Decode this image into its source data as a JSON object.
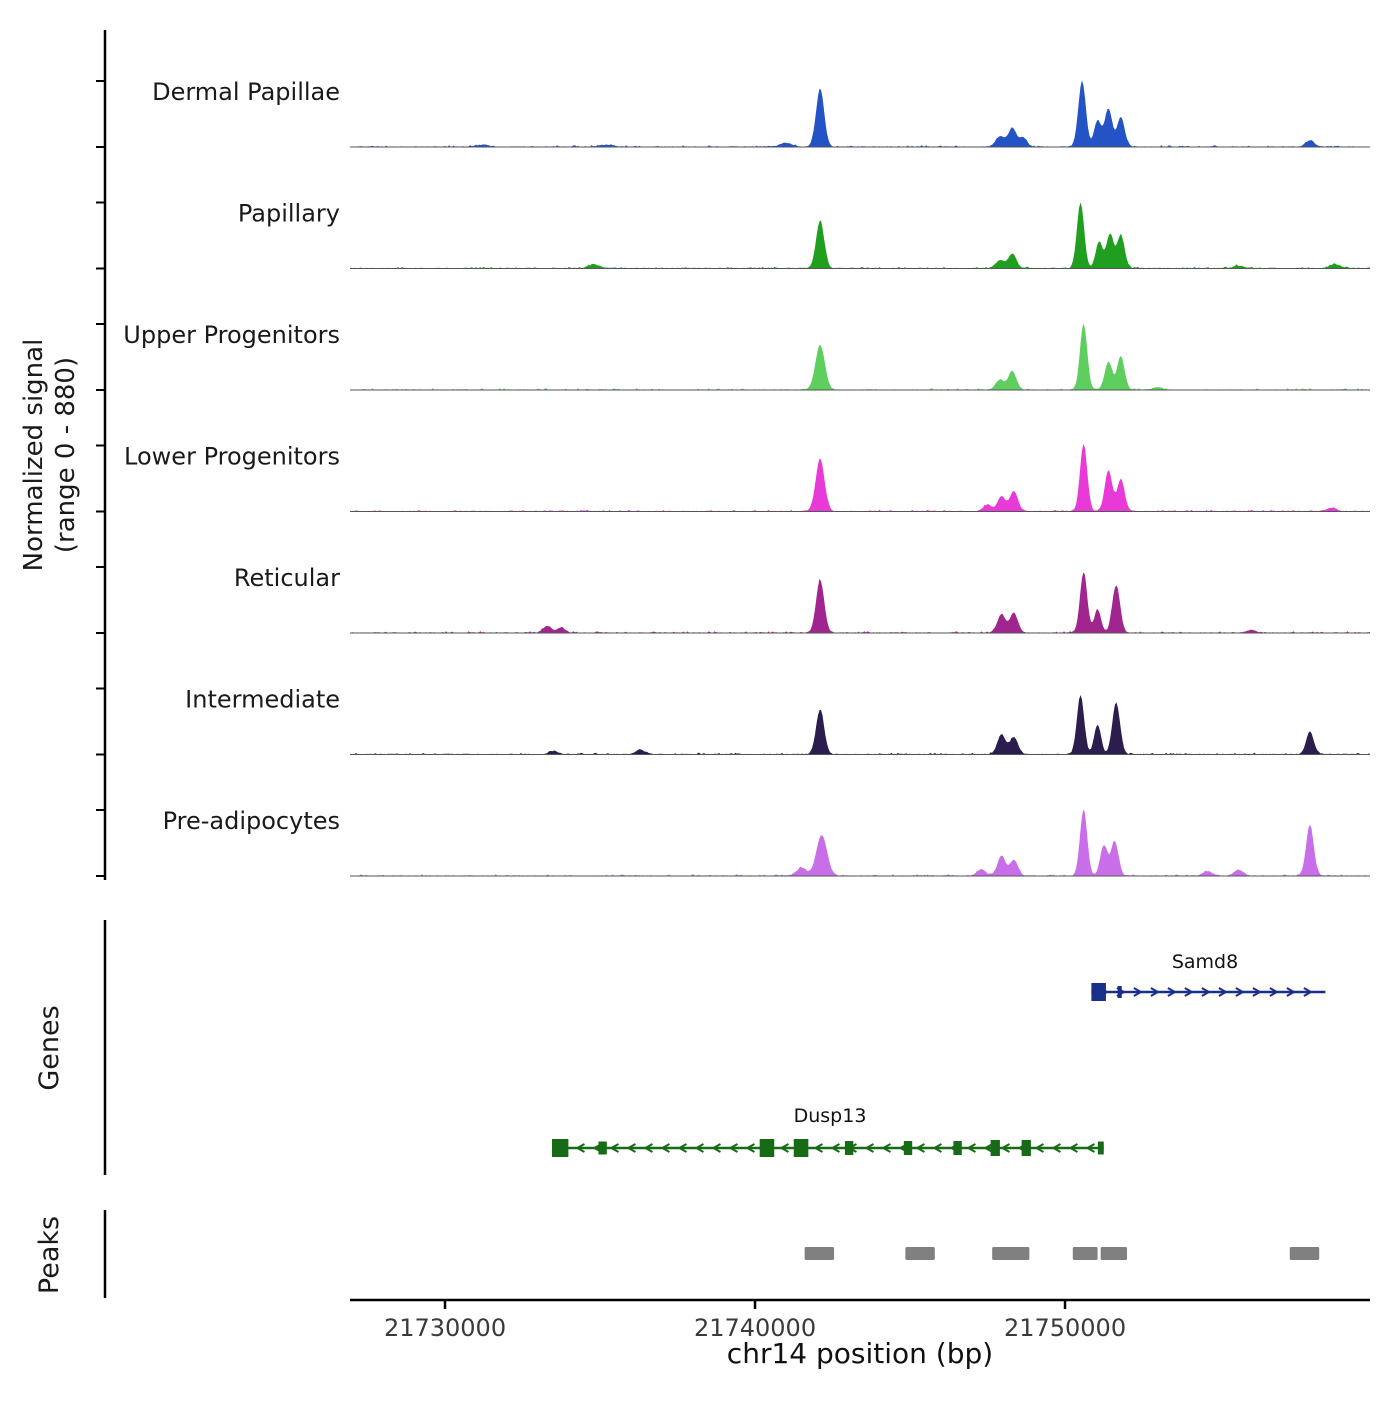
{
  "figure": {
    "y_axis_label_line1": "Normalized signal",
    "y_axis_label_line2": "(range 0 - 880)",
    "genes_label": "Genes",
    "peaks_label": "Peaks",
    "x_axis_title": "chr14 position (bp)"
  },
  "chart_data": {
    "type": "area",
    "title": "",
    "xlabel": "chr14 position (bp)",
    "ylabel": "Normalized signal (range 0 - 880)",
    "signal_range": [
      0,
      880
    ],
    "xlim": [
      21726935,
      21759838
    ],
    "grid": false,
    "x_ticks": [
      {
        "pos": 21730000,
        "label": "21730000"
      },
      {
        "pos": 21740000,
        "label": "21740000"
      },
      {
        "pos": 21750000,
        "label": "21750000"
      }
    ],
    "tracks": [
      {
        "name": "Dermal Papillae",
        "color": "#2353c4",
        "peaks": [
          [
            21731200,
            0.03,
            200
          ],
          [
            21735200,
            0.03,
            200
          ],
          [
            21741000,
            0.06,
            180
          ],
          [
            21742100,
            0.88,
            130
          ],
          [
            21747900,
            0.16,
            140
          ],
          [
            21748300,
            0.28,
            130
          ],
          [
            21748650,
            0.14,
            120
          ],
          [
            21750550,
            1.0,
            120
          ],
          [
            21751050,
            0.4,
            110
          ],
          [
            21751400,
            0.58,
            120
          ],
          [
            21751800,
            0.45,
            120
          ],
          [
            21757900,
            0.1,
            140
          ]
        ]
      },
      {
        "name": "Papillary",
        "color": "#1f9e1f",
        "peaks": [
          [
            21734800,
            0.06,
            160
          ],
          [
            21742100,
            0.72,
            130
          ],
          [
            21747900,
            0.12,
            140
          ],
          [
            21748300,
            0.22,
            130
          ],
          [
            21750500,
            1.0,
            115
          ],
          [
            21751100,
            0.4,
            110
          ],
          [
            21751450,
            0.52,
            115
          ],
          [
            21751800,
            0.5,
            120
          ],
          [
            21755600,
            0.04,
            150
          ],
          [
            21758700,
            0.06,
            150
          ]
        ]
      },
      {
        "name": "Upper Progenitors",
        "color": "#5ecf5e",
        "peaks": [
          [
            21742100,
            0.68,
            150
          ],
          [
            21747900,
            0.15,
            140
          ],
          [
            21748300,
            0.28,
            130
          ],
          [
            21750600,
            1.0,
            115
          ],
          [
            21751400,
            0.42,
            120
          ],
          [
            21751800,
            0.5,
            120
          ],
          [
            21753000,
            0.04,
            150
          ]
        ]
      },
      {
        "name": "Lower Progenitors",
        "color": "#e83ad6",
        "peaks": [
          [
            21742100,
            0.8,
            140
          ],
          [
            21747500,
            0.1,
            130
          ],
          [
            21747950,
            0.22,
            130
          ],
          [
            21748350,
            0.3,
            130
          ],
          [
            21750600,
            1.02,
            115
          ],
          [
            21751400,
            0.62,
            120
          ],
          [
            21751800,
            0.48,
            120
          ],
          [
            21758600,
            0.05,
            150
          ]
        ]
      },
      {
        "name": "Reticular",
        "color": "#a1258f",
        "peaks": [
          [
            21733300,
            0.1,
            140
          ],
          [
            21733750,
            0.08,
            130
          ],
          [
            21742100,
            0.8,
            130
          ],
          [
            21747950,
            0.28,
            130
          ],
          [
            21748350,
            0.3,
            130
          ],
          [
            21750600,
            0.92,
            115
          ],
          [
            21751050,
            0.35,
            110
          ],
          [
            21751650,
            0.72,
            125
          ],
          [
            21756000,
            0.04,
            150
          ]
        ]
      },
      {
        "name": "Intermediate",
        "color": "#2b1d4e",
        "peaks": [
          [
            21733500,
            0.05,
            140
          ],
          [
            21736300,
            0.07,
            140
          ],
          [
            21742100,
            0.68,
            130
          ],
          [
            21747950,
            0.3,
            130
          ],
          [
            21748350,
            0.26,
            130
          ],
          [
            21750500,
            0.9,
            115
          ],
          [
            21751050,
            0.45,
            110
          ],
          [
            21751650,
            0.78,
            125
          ],
          [
            21757900,
            0.35,
            120
          ]
        ]
      },
      {
        "name": "Pre-adipocytes",
        "color": "#c76ee8",
        "peaks": [
          [
            21741500,
            0.12,
            160
          ],
          [
            21742150,
            0.62,
            170
          ],
          [
            21747300,
            0.1,
            140
          ],
          [
            21747950,
            0.3,
            130
          ],
          [
            21748350,
            0.24,
            130
          ],
          [
            21750600,
            1.0,
            115
          ],
          [
            21751250,
            0.46,
            115
          ],
          [
            21751600,
            0.52,
            120
          ],
          [
            21754600,
            0.07,
            150
          ],
          [
            21755600,
            0.09,
            150
          ],
          [
            21757900,
            0.78,
            120
          ]
        ]
      }
    ],
    "genes": [
      {
        "name": "Samd8",
        "strand": "+",
        "start": 21750850,
        "end": 21758400,
        "color": "#1a2f8a",
        "exons": [
          [
            21750850,
            21751320,
            18
          ],
          [
            21751700,
            21751830,
            12
          ]
        ]
      },
      {
        "name": "Dusp13",
        "strand": "-",
        "start": 21733450,
        "end": 21751250,
        "color": "#176b17",
        "exons": [
          [
            21733450,
            21733980,
            18
          ],
          [
            21734950,
            21735220,
            13
          ],
          [
            21740150,
            21740620,
            18
          ],
          [
            21741250,
            21741720,
            18
          ],
          [
            21742900,
            21743170,
            14
          ],
          [
            21744800,
            21745070,
            14
          ],
          [
            21746400,
            21746670,
            14
          ],
          [
            21747600,
            21747900,
            16
          ],
          [
            21748600,
            21748900,
            16
          ],
          [
            21751060,
            21751250,
            13
          ]
        ]
      }
    ],
    "peak_regions": [
      [
        21741600,
        21742550
      ],
      [
        21744850,
        21745800
      ],
      [
        21747650,
        21748850
      ],
      [
        21750250,
        21751050
      ],
      [
        21751150,
        21752000
      ],
      [
        21757250,
        21758200
      ]
    ],
    "peak_color": "#808080"
  }
}
